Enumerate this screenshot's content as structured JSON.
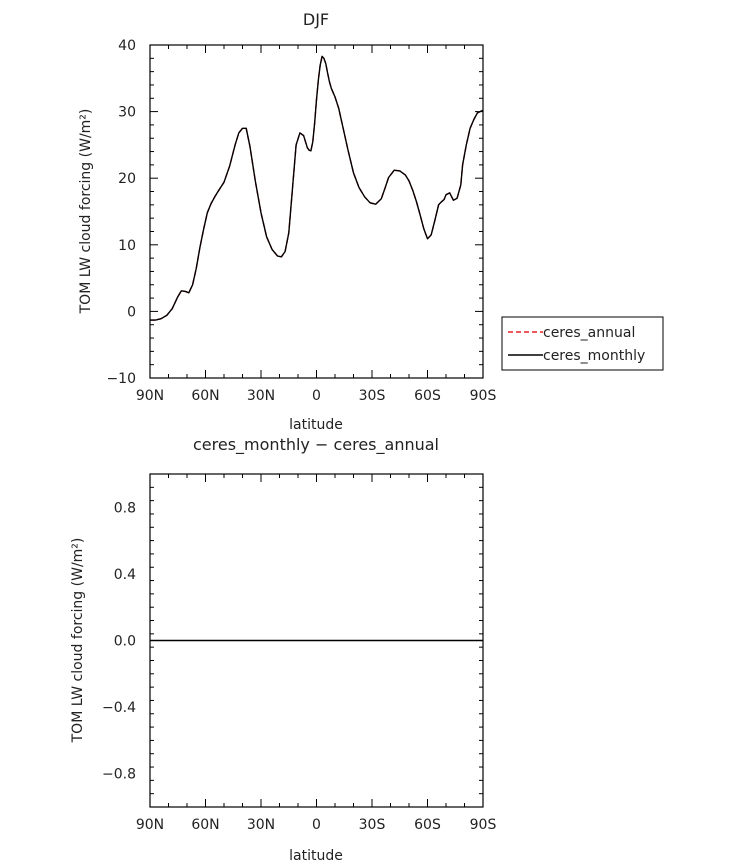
{
  "chart_data": [
    {
      "type": "line",
      "title": "DJF",
      "xlabel": "latitude",
      "ylabel": "TOM LW cloud forcing (W/m²)",
      "xlim": [
        90,
        -90
      ],
      "ylim": [
        -10,
        40
      ],
      "x_ticks": [
        90,
        60,
        30,
        0,
        -30,
        -60,
        -90
      ],
      "x_tick_labels": [
        "90N",
        "60N",
        "30N",
        "0",
        "30S",
        "60S",
        "90S"
      ],
      "y_ticks": [
        -10,
        0,
        10,
        20,
        30,
        40
      ],
      "y_tick_labels": [
        "−10",
        "0",
        "10",
        "20",
        "30",
        "40"
      ],
      "legend_position": "right",
      "legend": [
        {
          "label": "ceres_annual",
          "color": "#e8202a",
          "dash": "dashed"
        },
        {
          "label": "ceres_monthly",
          "color": "#000000",
          "dash": "solid"
        }
      ],
      "x": [
        90,
        87,
        84,
        81,
        78,
        75,
        73,
        71,
        69,
        67,
        65,
        63,
        61,
        59,
        57,
        55,
        53,
        50,
        47,
        44,
        42,
        40,
        38,
        36,
        33,
        30,
        27,
        24,
        21,
        19,
        17,
        15,
        13,
        11,
        9,
        7,
        5,
        4,
        3,
        2,
        1,
        0,
        -1,
        -2,
        -3,
        -4,
        -5,
        -6,
        -7,
        -8,
        -10,
        -12,
        -14,
        -17,
        -20,
        -23,
        -26,
        -29,
        -32,
        -35,
        -37,
        -39,
        -42,
        -45,
        -48,
        -50,
        -52,
        -54,
        -56,
        -58,
        -60,
        -62,
        -64,
        -66,
        -67,
        -69,
        -70,
        -72,
        -74,
        -76,
        -78,
        -79,
        -81,
        -83,
        -85,
        -87,
        -90
      ],
      "series": [
        {
          "name": "ceres_annual",
          "values": [
            -1.3,
            -1.3,
            -1.1,
            -0.6,
            0.4,
            2.2,
            3.1,
            3.0,
            2.8,
            4.0,
            6.5,
            9.6,
            12.4,
            14.8,
            16.2,
            17.2,
            18.1,
            19.4,
            21.8,
            25.0,
            26.8,
            27.5,
            27.5,
            24.8,
            19.5,
            14.8,
            11.2,
            9.3,
            8.3,
            8.2,
            9.0,
            11.8,
            18.3,
            25.0,
            26.8,
            26.4,
            24.6,
            24.2,
            24.1,
            25.5,
            28.2,
            31.8,
            34.8,
            37.0,
            38.3,
            38.0,
            37.2,
            35.8,
            34.5,
            33.5,
            32.2,
            30.5,
            28.0,
            24.3,
            20.8,
            18.6,
            17.2,
            16.3,
            16.1,
            16.9,
            18.5,
            20.1,
            21.2,
            21.1,
            20.5,
            19.6,
            18.2,
            16.5,
            14.5,
            12.4,
            10.9,
            11.5,
            13.7,
            16.0,
            16.3,
            16.8,
            17.5,
            17.8,
            16.7,
            17.0,
            19.0,
            22.0,
            25.0,
            27.5,
            28.8,
            29.8,
            30.2
          ]
        },
        {
          "name": "ceres_monthly",
          "values": [
            -1.3,
            -1.3,
            -1.1,
            -0.6,
            0.4,
            2.2,
            3.1,
            3.0,
            2.8,
            4.0,
            6.5,
            9.6,
            12.4,
            14.8,
            16.2,
            17.2,
            18.1,
            19.4,
            21.8,
            25.0,
            26.8,
            27.5,
            27.5,
            24.8,
            19.5,
            14.8,
            11.2,
            9.3,
            8.3,
            8.2,
            9.0,
            11.8,
            18.3,
            25.0,
            26.8,
            26.4,
            24.6,
            24.2,
            24.1,
            25.5,
            28.2,
            31.8,
            34.8,
            37.0,
            38.3,
            38.0,
            37.2,
            35.8,
            34.5,
            33.5,
            32.2,
            30.5,
            28.0,
            24.3,
            20.8,
            18.6,
            17.2,
            16.3,
            16.1,
            16.9,
            18.5,
            20.1,
            21.2,
            21.1,
            20.5,
            19.6,
            18.2,
            16.5,
            14.5,
            12.4,
            10.9,
            11.5,
            13.7,
            16.0,
            16.3,
            16.8,
            17.5,
            17.8,
            16.7,
            17.0,
            19.0,
            22.0,
            25.0,
            27.5,
            28.8,
            29.8,
            30.2
          ]
        }
      ]
    },
    {
      "type": "line",
      "title": "ceres_monthly − ceres_annual",
      "xlabel": "latitude",
      "ylabel": "TOM LW cloud forcing (W/m²)",
      "xlim": [
        90,
        -90
      ],
      "ylim": [
        -1,
        1
      ],
      "x_ticks": [
        90,
        60,
        30,
        0,
        -30,
        -60,
        -90
      ],
      "x_tick_labels": [
        "90N",
        "60N",
        "30N",
        "0",
        "30S",
        "60S",
        "90S"
      ],
      "y_ticks": [
        -0.8,
        -0.4,
        0,
        0.4,
        0.8
      ],
      "y_tick_labels": [
        "−0.8",
        "−0.4",
        "0.0",
        "0.4",
        "0.8"
      ],
      "x": [
        90,
        -90
      ],
      "series": [
        {
          "values": [
            0,
            0
          ],
          "color": "#000000"
        }
      ]
    }
  ]
}
